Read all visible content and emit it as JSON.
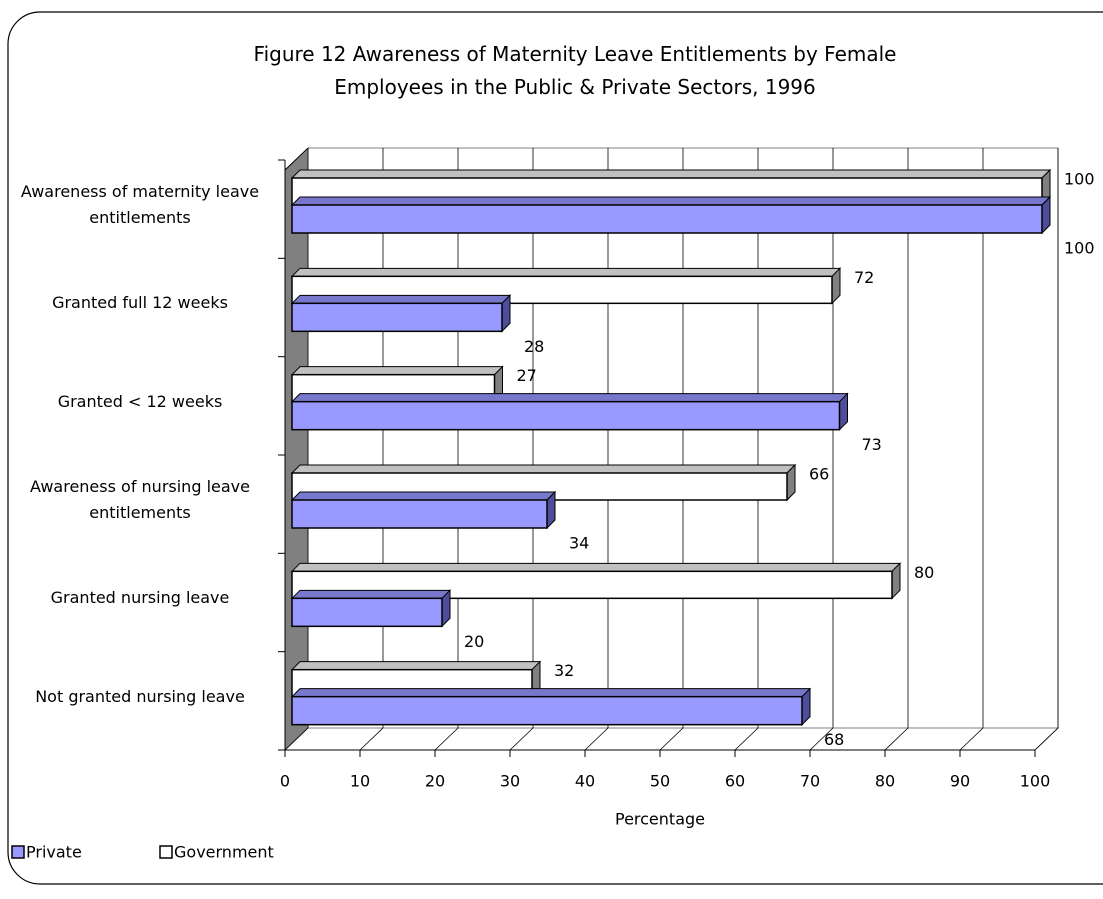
{
  "chart_data": {
    "type": "bar3d_horizontal",
    "title": [
      "Figure 12  Awareness of Maternity Leave Entitlements by Female",
      "Employees in the Public & Private Sectors, 1996"
    ],
    "categories": [
      "Awareness of maternity leave entitlements",
      "Granted full 12 weeks",
      "Granted < 12 weeks",
      "Awareness of nursing leave entitlements",
      "Granted nursing leave",
      "Not granted nursing leave"
    ],
    "series": [
      {
        "name": "Private",
        "color": "#9999ff",
        "values": [
          100,
          28,
          73,
          34,
          20,
          68
        ]
      },
      {
        "name": "Government",
        "color": "#ffffff",
        "values": [
          100,
          72,
          27,
          66,
          80,
          32
        ]
      }
    ],
    "xlabel": "Percentage",
    "xlim": [
      0,
      100
    ],
    "xticks": [
      0,
      10,
      20,
      30,
      40,
      50,
      60,
      70,
      80,
      90,
      100
    ],
    "grid": true,
    "legend": "bottom-left"
  }
}
